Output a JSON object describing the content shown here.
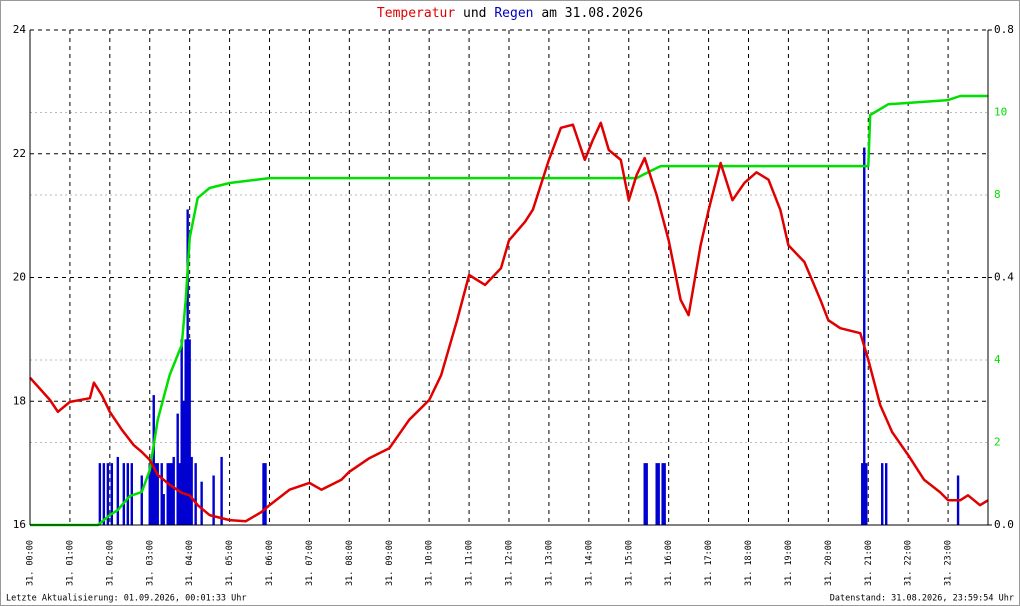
{
  "chart_data": {
    "type": "line",
    "title": [
      {
        "text": "Temperatur",
        "color": "#e00000"
      },
      {
        "text": "und",
        "color": "#000000"
      },
      {
        "text": "Regen",
        "color": "#0000c0"
      },
      {
        "text": "am 31.08.2026",
        "color": "#000000"
      }
    ],
    "footer_left": "Letzte Aktualisierung: 01.09.2026, 00:01:33 Uhr",
    "footer_right": "Datenstand: 31.08.2026, 23:59:54 Uhr",
    "xlim": [
      0,
      24
    ],
    "xticks": [
      {
        "value": 0,
        "label": "31. 00:00"
      },
      {
        "value": 1,
        "label": "31. 01:00"
      },
      {
        "value": 2,
        "label": "31. 02:00"
      },
      {
        "value": 3,
        "label": "31. 03:00"
      },
      {
        "value": 4,
        "label": "31. 04:00"
      },
      {
        "value": 5,
        "label": "31. 05:00"
      },
      {
        "value": 6,
        "label": "31. 06:00"
      },
      {
        "value": 7,
        "label": "31. 07:00"
      },
      {
        "value": 8,
        "label": "31. 08:00"
      },
      {
        "value": 9,
        "label": "31. 09:00"
      },
      {
        "value": 10,
        "label": "31. 10:00"
      },
      {
        "value": 11,
        "label": "31. 11:00"
      },
      {
        "value": 12,
        "label": "31. 12:00"
      },
      {
        "value": 13,
        "label": "31. 13:00"
      },
      {
        "value": 14,
        "label": "31. 14:00"
      },
      {
        "value": 15,
        "label": "31. 15:00"
      },
      {
        "value": 16,
        "label": "31. 16:00"
      },
      {
        "value": 17,
        "label": "31. 17:00"
      },
      {
        "value": 18,
        "label": "31. 18:00"
      },
      {
        "value": 19,
        "label": "31. 19:00"
      },
      {
        "value": 20,
        "label": "31. 20:00"
      },
      {
        "value": 21,
        "label": "31. 21:00"
      },
      {
        "value": 22,
        "label": "31. 22:00"
      },
      {
        "value": 23,
        "label": "31. 23:00"
      }
    ],
    "ylim": [
      16,
      24
    ],
    "yticks": [
      16,
      18,
      20,
      22,
      24
    ],
    "y2lim": [
      0,
      12
    ],
    "y2ticks": [
      2,
      4,
      8,
      10
    ],
    "y2color": "#00e000",
    "y3lim": [
      0,
      0.8
    ],
    "y3ticks": [
      {
        "value": 0,
        "label": "0.0"
      },
      0.4,
      0.8
    ],
    "series": [
      {
        "type": "bar",
        "axis": "y3",
        "color": "#0000d0",
        "x": [
          1.75,
          1.85,
          1.95,
          2.05,
          2.2,
          2.35,
          2.45,
          2.55,
          2.8,
          3.0,
          3.05,
          3.1,
          3.15,
          3.2,
          3.3,
          3.35,
          3.45,
          3.5,
          3.55,
          3.6,
          3.7,
          3.75,
          3.8,
          3.85,
          3.9,
          3.95,
          4.0,
          4.05,
          4.15,
          4.3,
          4.6,
          4.8,
          5.85,
          5.9,
          15.4,
          15.45,
          15.7,
          15.75,
          15.85,
          15.9,
          20.85,
          20.9,
          20.95,
          21.35,
          21.45,
          23.25
        ],
        "values": [
          0.1,
          0.1,
          0.1,
          0.1,
          0.11,
          0.1,
          0.1,
          0.1,
          0.08,
          0.1,
          0.1,
          0.21,
          0.1,
          0.1,
          0.1,
          0.05,
          0.1,
          0.1,
          0.1,
          0.11,
          0.18,
          0.1,
          0.3,
          0.2,
          0.3,
          0.51,
          0.3,
          0.11,
          0.1,
          0.07,
          0.08,
          0.11,
          0.1,
          0.1,
          0.1,
          0.1,
          0.1,
          0.1,
          0.1,
          0.1,
          0.1,
          0.61,
          0.1,
          0.1,
          0.1,
          0.08
        ]
      },
      {
        "type": "line",
        "axis": "y2",
        "color": "#00e000",
        "x": [
          0,
          1.7,
          2,
          2.2,
          2.3,
          2.5,
          2.8,
          3,
          3.2,
          3.5,
          3.8,
          3.9,
          4,
          4.2,
          4.5,
          5,
          6,
          15.2,
          15.5,
          15.8,
          21,
          21.05,
          21.5,
          23,
          23.3,
          24
        ],
        "values": [
          0,
          0,
          0.24,
          0.36,
          0.48,
          0.7,
          0.8,
          1.33,
          2.55,
          3.64,
          4.36,
          5.45,
          6.96,
          7.93,
          8.17,
          8.29,
          8.41,
          8.41,
          8.56,
          8.7,
          8.7,
          9.94,
          10.2,
          10.3,
          10.4,
          10.4
        ]
      },
      {
        "type": "line",
        "axis": "y",
        "color": "#e00000",
        "x": [
          0,
          0.5,
          0.7,
          1,
          1.5,
          1.6,
          1.8,
          2,
          2.3,
          2.6,
          2.8,
          3,
          3.2,
          3.5,
          3.8,
          4,
          4.2,
          4.5,
          5,
          5.4,
          5.8,
          6,
          6.5,
          7,
          7.3,
          7.8,
          8,
          8.5,
          9,
          9.5,
          10,
          10.3,
          10.7,
          11,
          11.4,
          11.8,
          12,
          12.4,
          12.6,
          12.8,
          13,
          13.3,
          13.6,
          13.9,
          14.1,
          14.3,
          14.5,
          14.8,
          15,
          15.2,
          15.4,
          15.7,
          16,
          16.3,
          16.5,
          16.8,
          17,
          17.3,
          17.6,
          17.9,
          18.2,
          18.5,
          18.8,
          19,
          19.4,
          19.8,
          20,
          20.3,
          20.8,
          21,
          21.3,
          21.6,
          22,
          22.4,
          22.8,
          23,
          23.3,
          23.5,
          23.8,
          24
        ],
        "values": [
          18.38,
          18.02,
          17.83,
          17.99,
          18.05,
          18.3,
          18.1,
          17.83,
          17.54,
          17.29,
          17.18,
          17.05,
          16.81,
          16.65,
          16.52,
          16.48,
          16.32,
          16.16,
          16.08,
          16.06,
          16.21,
          16.32,
          16.57,
          16.68,
          16.57,
          16.73,
          16.86,
          17.08,
          17.24,
          17.7,
          18.02,
          18.42,
          19.31,
          20.04,
          19.88,
          20.15,
          20.6,
          20.9,
          21.1,
          21.5,
          21.9,
          22.42,
          22.47,
          21.9,
          22.22,
          22.5,
          22.06,
          21.9,
          21.25,
          21.66,
          21.93,
          21.33,
          20.6,
          19.64,
          19.39,
          20.52,
          21.09,
          21.85,
          21.25,
          21.53,
          21.7,
          21.58,
          21.09,
          20.52,
          20.25,
          19.64,
          19.31,
          19.18,
          19.1,
          18.67,
          17.94,
          17.5,
          17.13,
          16.73,
          16.53,
          16.4,
          16.4,
          16.48,
          16.32,
          16.4
        ]
      }
    ]
  }
}
